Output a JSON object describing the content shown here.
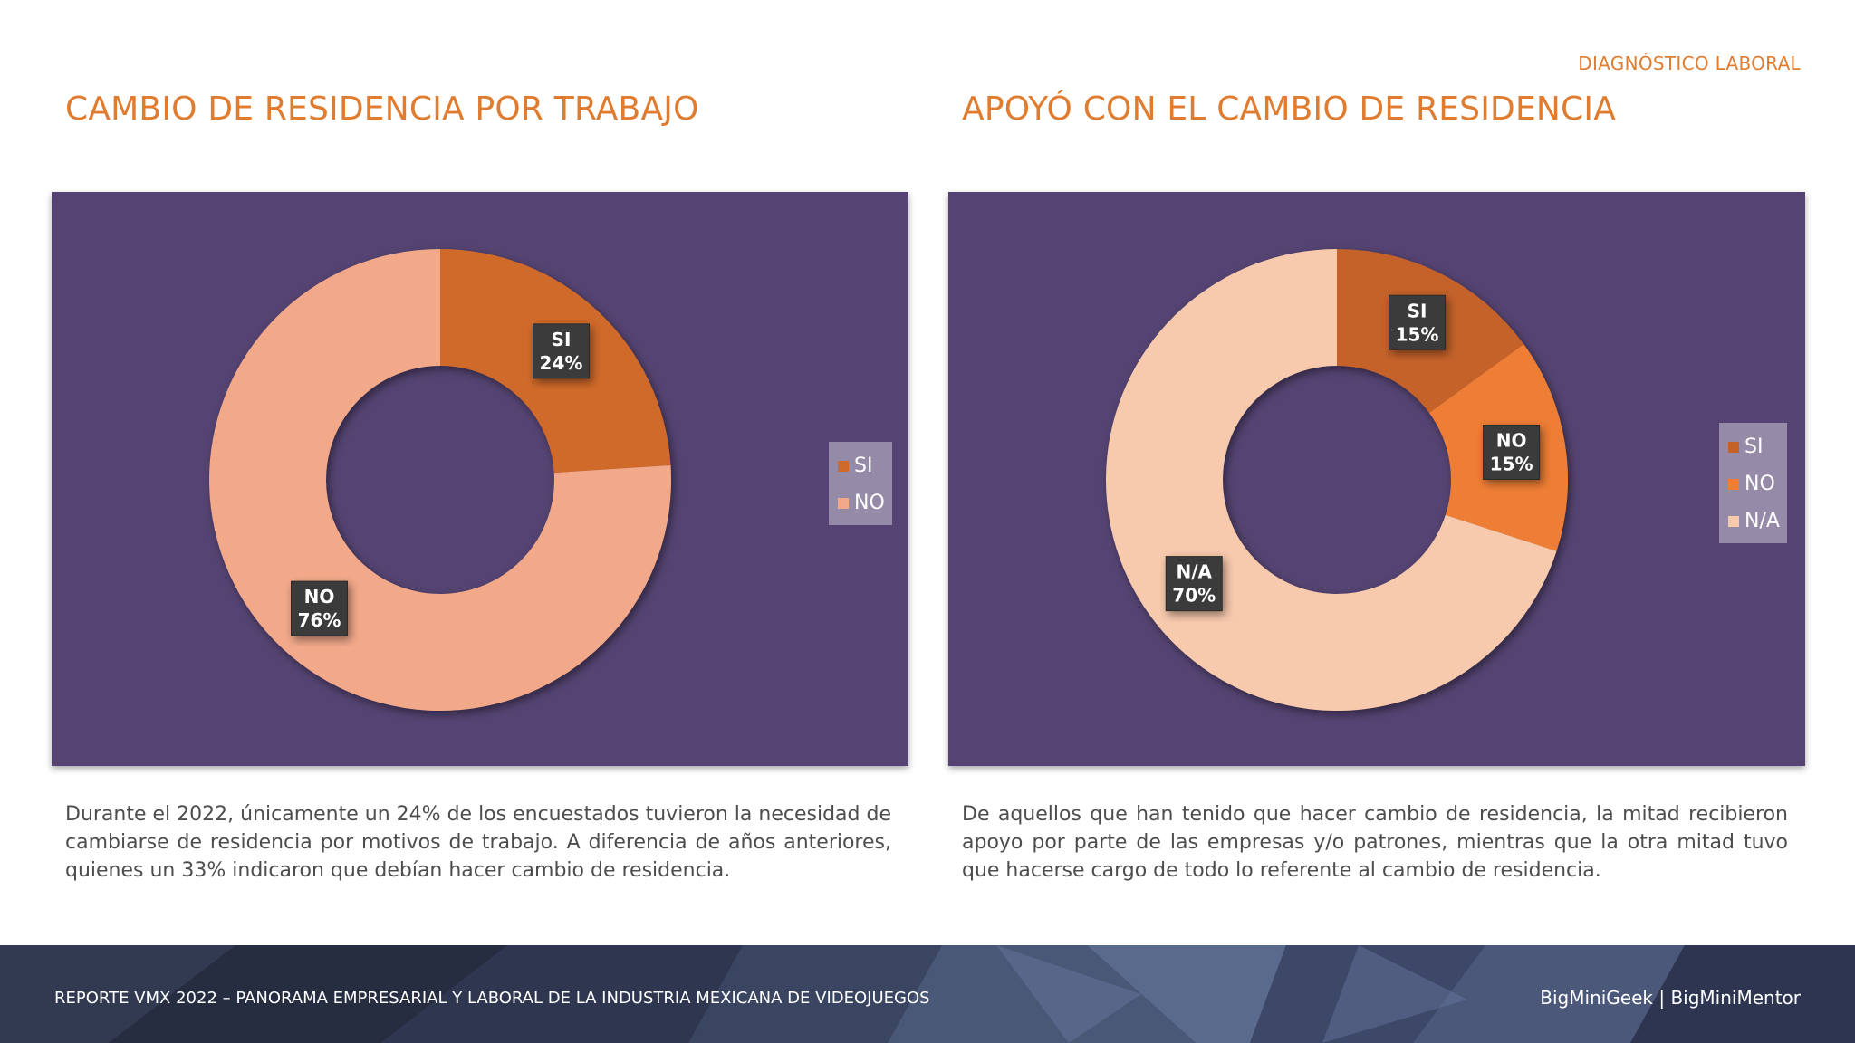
{
  "header": {
    "tag": "DIAGNÓSTICO LABORAL"
  },
  "panels": [
    {
      "title": "CAMBIO DE RESIDENCIA POR TRABAJO",
      "description": "Durante el 2022, únicamente un 24% de los encuestados tuvieron la necesidad de cambiarse de residencia por motivos de trabajo. A diferencia de años anteriores, quienes un 33% indicaron que debían hacer cambio de residencia."
    },
    {
      "title": "APOYÓ CON EL CAMBIO DE RESIDENCIA",
      "description": "De aquellos que han tenido que hacer cambio de residencia, la mitad recibieron apoyo por parte de las empresas y/o patrones, mientras que la otra mitad tuvo que hacerse cargo de todo lo referente al cambio de residencia."
    }
  ],
  "chart_data": [
    {
      "type": "pie",
      "donut": true,
      "title": "CAMBIO DE RESIDENCIA POR TRABAJO",
      "legend": "right",
      "categories": [
        "SI",
        "NO"
      ],
      "values": [
        24,
        76
      ],
      "value_labels": [
        "24%",
        "76%"
      ],
      "colors": [
        "#d06a2a",
        "#f2a98a"
      ]
    },
    {
      "type": "pie",
      "donut": true,
      "title": "APOYÓ CON EL CAMBIO DE RESIDENCIA",
      "legend": "right",
      "categories": [
        "SI",
        "NO",
        "N/A"
      ],
      "values": [
        15,
        15,
        70
      ],
      "value_labels": [
        "15%",
        "15%",
        "70%"
      ],
      "colors": [
        "#c4622a",
        "#ee7d35",
        "#f7c9ad"
      ]
    }
  ],
  "colors": {
    "accent": "#e07c30",
    "chart_background": "#554473",
    "footer_background": "#2a3145"
  },
  "footer": {
    "left_text": "REPORTE VMX 2022 – PANORAMA EMPRESARIAL Y LABORAL DE LA INDUSTRIA MEXICANA DE VIDEOJUEGOS",
    "right_text": "BigMiniGeek | BigMiniMentor"
  }
}
